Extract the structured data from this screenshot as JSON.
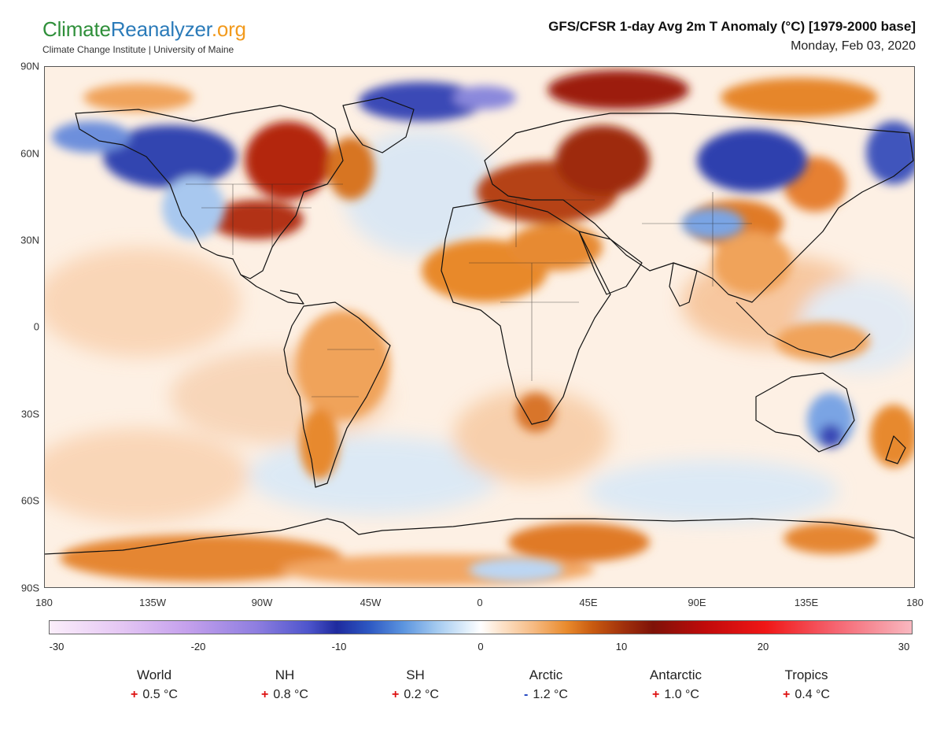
{
  "header": {
    "logo_climate": "Climate",
    "logo_reanalyzer": "Reanalyzer",
    "logo_org": ".org",
    "logo_subtitle": "Climate Change Institute | University of Maine",
    "title": "GFS/CFSR 1-day Avg 2m T Anomaly (°C) [1979-2000 base]",
    "date": "Monday, Feb 03, 2020"
  },
  "map": {
    "projection": "equirectangular",
    "lat_labels": [
      "90N",
      "60N",
      "30N",
      "0",
      "30S",
      "60S",
      "90S"
    ],
    "lon_labels": [
      "180",
      "135W",
      "90W",
      "45W",
      "0",
      "45E",
      "90E",
      "135E",
      "180"
    ],
    "colors": {
      "ocean_base": "#fbe4cf",
      "warm_light": "#f6bc85",
      "warm": "#e98a2c",
      "warm_strong": "#b8420e",
      "warm_extreme": "#8a1a08",
      "cool_light": "#cfe4f8",
      "cool": "#6f9fe3",
      "cool_strong": "#2d3fb0",
      "coastline": "#111111"
    }
  },
  "colorbar": {
    "range": [
      -30,
      30
    ],
    "ticks": [
      "-30",
      "-20",
      "-10",
      "0",
      "10",
      "20",
      "30"
    ]
  },
  "stats": [
    {
      "label": "World",
      "sign": "+",
      "value": "0.5 °C"
    },
    {
      "label": "NH",
      "sign": "+",
      "value": "0.8 °C"
    },
    {
      "label": "SH",
      "sign": "+",
      "value": "0.2 °C"
    },
    {
      "label": "Arctic",
      "sign": "-",
      "value": "1.2 °C"
    },
    {
      "label": "Antarctic",
      "sign": "+",
      "value": "1.0 °C"
    },
    {
      "label": "Tropics",
      "sign": "+",
      "value": "0.4 °C"
    }
  ]
}
